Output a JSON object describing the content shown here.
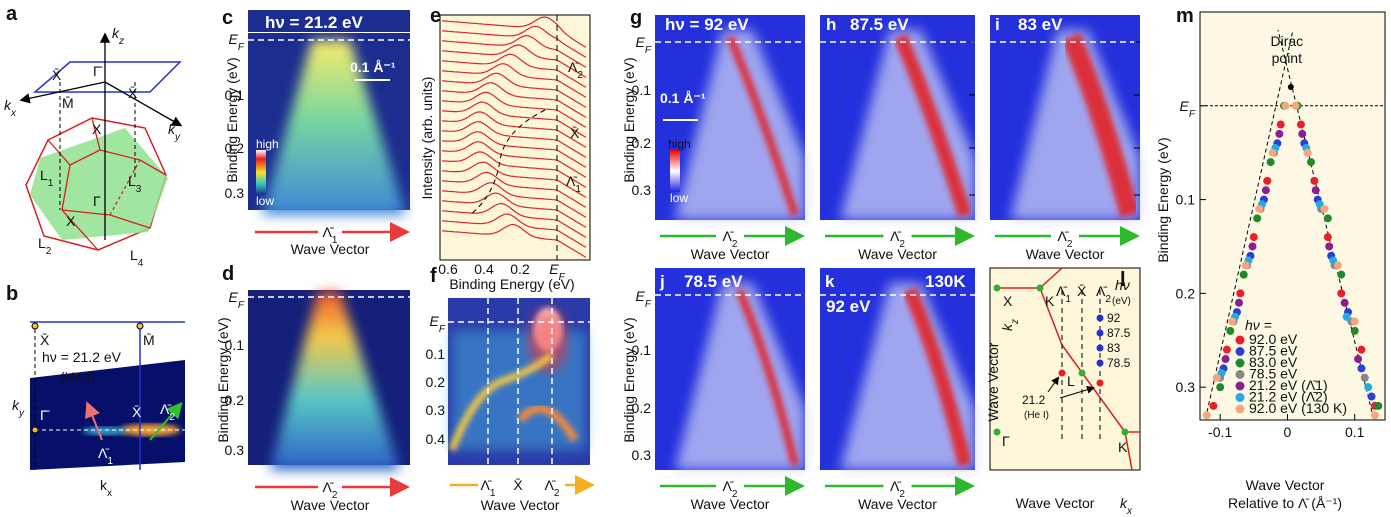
{
  "panels": {
    "a": {
      "label": "a",
      "texts": [
        "kz",
        "X̄",
        "Γ̄",
        "X̄",
        "kx",
        "M̄",
        "X",
        "ky",
        "L1",
        "L3",
        "Γ",
        "X",
        "L2",
        "L4"
      ]
    },
    "b": {
      "label": "b",
      "texts": [
        "X̄",
        "M̄",
        "hν = 21.2 eV",
        "(He I)",
        "ky",
        "Γ̄",
        "X̄",
        "Λ̄2",
        "Λ̄1",
        "kx"
      ]
    },
    "c": {
      "label": "c",
      "title": "hν = 21.2 eV",
      "scale": "0.1 Å⁻¹",
      "ylabel": "Binding Energy (eV)",
      "yticks": [
        "EF",
        "0.1",
        "0.2",
        "0.3"
      ],
      "colorbar": [
        "high",
        "low"
      ],
      "xsub": "Λ̄1",
      "xlabel": "Wave Vector"
    },
    "d": {
      "label": "d",
      "ylabel": "Binding Energy (eV)",
      "yticks": [
        "EF",
        "0.1",
        "0.2",
        "0.3"
      ],
      "xsub": "Λ̄2",
      "xlabel": "Wave Vector"
    },
    "e": {
      "label": "e",
      "ylabel": "Intensity (arb. units)",
      "xticks": [
        "0.6",
        "0.4",
        "0.2",
        "EF"
      ],
      "xlabel": "Binding Energy (eV)",
      "marks": [
        "Λ̄2",
        "X̄",
        "Λ̄1"
      ]
    },
    "f": {
      "label": "f",
      "yticks": [
        "EF",
        "0.1",
        "0.2",
        "0.3",
        "0.4"
      ],
      "xsubs": [
        "Λ̄1",
        "X̄",
        "Λ̄2"
      ],
      "xlabel": "Wave Vector"
    },
    "g": {
      "label": "g",
      "title": "hν = 92 eV",
      "scale": "0.1 Å⁻¹",
      "ylabel": "Binding Energy (eV)",
      "yticks": [
        "EF",
        "0.1",
        "0.2",
        "0.3"
      ],
      "colorbar": [
        "high",
        "low"
      ],
      "xsub": "Λ̄2",
      "xlabel": "Wave Vector"
    },
    "h": {
      "label": "h",
      "title": "87.5 eV",
      "xsub": "Λ̄2",
      "xlabel": "Wave Vector"
    },
    "i": {
      "label": "i",
      "title": "83 eV",
      "xsub": "Λ̄2",
      "xlabel": "Wave Vector"
    },
    "j": {
      "label": "j",
      "title": "78.5 eV",
      "ylabel": "Binding Energy (eV)",
      "yticks": [
        "EF",
        "0.1",
        "0.2",
        "0.3"
      ],
      "xsub": "Λ̄2",
      "xlabel": "Wave Vector"
    },
    "k": {
      "label": "k",
      "title": "130K",
      "title2": "92 eV",
      "xsub": "Λ̄2",
      "xlabel": "Wave Vector"
    },
    "l": {
      "label": "l",
      "texts": [
        "kz",
        "X",
        "K",
        "Λ̄1",
        "X̄",
        "Λ̄2",
        "hν",
        "(eV)",
        "92",
        "87.5",
        "83",
        "78.5",
        "L",
        "21.2",
        "(He I)",
        "Γ",
        "K",
        "Wave Vector",
        "Wave Vector",
        "kx"
      ]
    }
  },
  "chart_data": {
    "type": "scatter",
    "panel_label": "m",
    "xlabel": "Wave Vector",
    "xlabel2": "Relative to Λ̄ (Å⁻¹)",
    "ylabel": "Binding Energy (eV)",
    "annotation": [
      "Dirac",
      "point"
    ],
    "dirac_point": {
      "x": 0.005,
      "y": -0.02
    },
    "legend_title": "hν =",
    "xlim": [
      -0.13,
      0.145
    ],
    "ylim": [
      -0.1,
      0.335
    ],
    "y_inverted": true,
    "xticks": [
      -0.1,
      0,
      0.1
    ],
    "yticks": [
      {
        "value": 0,
        "label": "EF"
      },
      0.1,
      0.2,
      0.3
    ],
    "series": [
      {
        "name": "92.0 eV",
        "color": "#e8202a",
        "x": [
          -0.01,
          -0.03,
          -0.05,
          -0.07,
          -0.09,
          -0.11,
          0.02,
          0.04,
          0.06,
          0.08,
          0.11,
          0.13
        ],
        "values": [
          0.02,
          0.08,
          0.14,
          0.2,
          0.26,
          0.32,
          0.02,
          0.08,
          0.14,
          0.2,
          0.26,
          0.32
        ]
      },
      {
        "name": "87.5 eV",
        "color": "#2b3fd0",
        "x": [
          -0.015,
          -0.035,
          -0.055,
          -0.075,
          -0.095,
          0.025,
          0.045,
          0.065,
          0.09,
          0.11,
          0.125
        ],
        "values": [
          0.04,
          0.1,
          0.16,
          0.22,
          0.28,
          0.04,
          0.1,
          0.16,
          0.22,
          0.28,
          0.31
        ]
      },
      {
        "name": "83.0 eV",
        "color": "#1f8a2a",
        "x": [
          -0.005,
          -0.025,
          -0.045,
          -0.065,
          -0.085,
          -0.1,
          0.015,
          0.035,
          0.06,
          0.08,
          0.1,
          0.135
        ],
        "values": [
          0.0,
          0.06,
          0.12,
          0.18,
          0.24,
          0.3,
          0.0,
          0.06,
          0.12,
          0.18,
          0.24,
          0.32
        ]
      },
      {
        "name": "78.5 eV",
        "color": "#888888",
        "x": [
          -0.02,
          -0.04,
          -0.06,
          -0.08,
          -0.1,
          0.03,
          0.05,
          0.07,
          0.095,
          0.115
        ],
        "values": [
          0.05,
          0.11,
          0.17,
          0.23,
          0.29,
          0.05,
          0.11,
          0.17,
          0.23,
          0.29
        ]
      },
      {
        "name": "21.2 eV (Λ̄1)",
        "color": "#8a2090",
        "x": [
          -0.012,
          -0.032,
          -0.052,
          -0.072,
          -0.092,
          0.022,
          0.042,
          0.062,
          0.085,
          0.105
        ],
        "values": [
          0.03,
          0.09,
          0.15,
          0.21,
          0.27,
          0.03,
          0.09,
          0.15,
          0.21,
          0.27
        ]
      },
      {
        "name": "21.2 eV (Λ̄2)",
        "color": "#27a9e1",
        "x": [
          -0.018,
          -0.038,
          -0.058,
          -0.078,
          -0.098,
          0.028,
          0.048,
          0.068,
          0.088,
          0.12
        ],
        "values": [
          0.045,
          0.105,
          0.165,
          0.225,
          0.285,
          0.045,
          0.105,
          0.165,
          0.225,
          0.3
        ]
      },
      {
        "name": "92.0 eV (130 K)",
        "color": "#f4a582",
        "x": [
          -0.003,
          -0.022,
          -0.042,
          -0.062,
          -0.082,
          -0.105,
          -0.12,
          0.012,
          0.03,
          0.055,
          0.075,
          0.1,
          0.13
        ],
        "values": [
          0.0,
          0.05,
          0.11,
          0.17,
          0.23,
          0.29,
          0.33,
          0.0,
          0.05,
          0.11,
          0.17,
          0.23,
          0.33
        ]
      }
    ]
  }
}
